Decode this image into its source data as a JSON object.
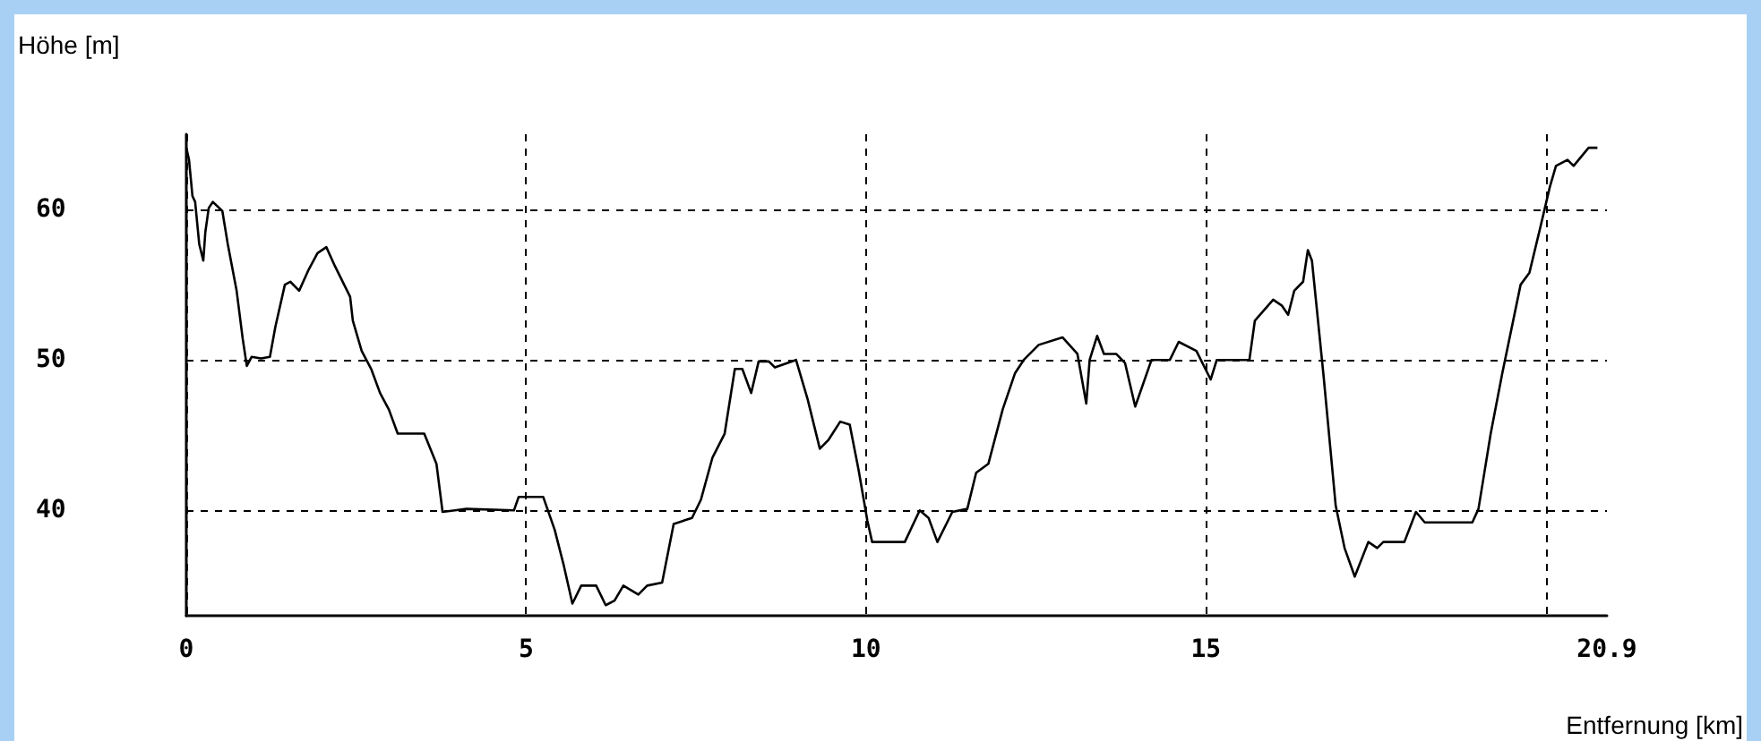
{
  "chart_data": {
    "type": "line",
    "xlabel": "Entfernung [km]",
    "ylabel": "Höhe [m]",
    "xlim": [
      0,
      20.9
    ],
    "xticks": [
      0,
      5,
      10,
      15,
      {
        "value": 20,
        "label": null
      },
      20.9
    ],
    "ylim": [
      33,
      65
    ],
    "yticks": [
      40,
      50,
      60
    ],
    "grid": true,
    "marker": "none",
    "line_style": "solid",
    "series": [
      {
        "color": "#000000",
        "x": [
          0,
          0.04,
          0.09,
          0.13,
          0.19,
          0.25,
          0.28,
          0.33,
          0.39,
          0.53,
          0.61,
          0.74,
          0.83,
          0.89,
          0.96,
          1.1,
          1.23,
          1.31,
          1.45,
          1.53,
          1.66,
          1.8,
          1.93,
          2.06,
          2.19,
          2.41,
          2.45,
          2.58,
          2.72,
          2.85,
          2.98,
          3.11,
          3.5,
          3.68,
          3.77,
          4.12,
          4.82,
          4.89,
          5.25,
          5.42,
          5.55,
          5.68,
          5.81,
          6.03,
          6.17,
          6.3,
          6.43,
          6.65,
          6.78,
          7.0,
          7.17,
          7.44,
          7.57,
          7.74,
          7.92,
          8.07,
          8.18,
          8.31,
          8.42,
          8.57,
          8.66,
          8.97,
          9.14,
          9.32,
          9.45,
          9.62,
          9.76,
          9.89,
          10.02,
          10.09,
          10.57,
          10.79,
          10.92,
          11.05,
          11.27,
          11.49,
          11.62,
          11.8,
          12.01,
          12.19,
          12.32,
          12.54,
          12.89,
          13.11,
          13.24,
          13.29,
          13.4,
          13.5,
          13.68,
          13.81,
          13.96,
          14.2,
          14.47,
          14.6,
          14.86,
          15.07,
          15.16,
          15.64,
          15.72,
          15.99,
          16.12,
          16.21,
          16.3,
          16.43,
          16.5,
          16.56,
          16.73,
          16.91,
          17.04,
          17.19,
          17.39,
          17.52,
          17.61,
          17.92,
          18.09,
          18.22,
          18.92,
          19.01,
          19.1,
          19.19,
          19.36,
          19.63,
          19.76,
          19.93,
          20.06,
          20.15,
          20.32,
          20.41,
          20.63,
          20.76
        ],
        "values": [
          64.1,
          63.3,
          60.9,
          60.5,
          57.7,
          56.6,
          58.5,
          60.1,
          60.5,
          59.9,
          57.7,
          54.6,
          51.4,
          49.6,
          50.2,
          50.1,
          50.2,
          52.2,
          55,
          55.2,
          54.6,
          56,
          57.1,
          57.5,
          56.2,
          54.2,
          52.6,
          50.6,
          49.4,
          47.8,
          46.7,
          45.1,
          45.1,
          43.1,
          39.9,
          40.1,
          40,
          40.9,
          40.9,
          38.7,
          36.4,
          33.8,
          35,
          35,
          33.7,
          34,
          35,
          34.4,
          35,
          35.2,
          39.1,
          39.5,
          40.7,
          43.5,
          45.1,
          49.4,
          49.4,
          47.8,
          49.9,
          49.9,
          49.5,
          50,
          47.4,
          44.1,
          44.7,
          45.9,
          45.7,
          42.7,
          39.3,
          37.9,
          37.9,
          40,
          39.5,
          37.9,
          39.9,
          40.1,
          42.5,
          43.1,
          46.7,
          49.1,
          50,
          51,
          51.5,
          50.4,
          47.1,
          50,
          51.6,
          50.4,
          50.4,
          49.8,
          46.9,
          50,
          50,
          51.2,
          50.6,
          48.7,
          50,
          50,
          52.6,
          54,
          53.6,
          53,
          54.6,
          55.2,
          57.3,
          56.6,
          49,
          40.3,
          37.5,
          35.6,
          37.9,
          37.5,
          37.9,
          37.9,
          39.9,
          39.2,
          39.2,
          40.1,
          42.6,
          45.1,
          49.1,
          55,
          55.8,
          59,
          61.5,
          62.9,
          63.3,
          62.9,
          64.1,
          64.1
        ]
      }
    ]
  }
}
